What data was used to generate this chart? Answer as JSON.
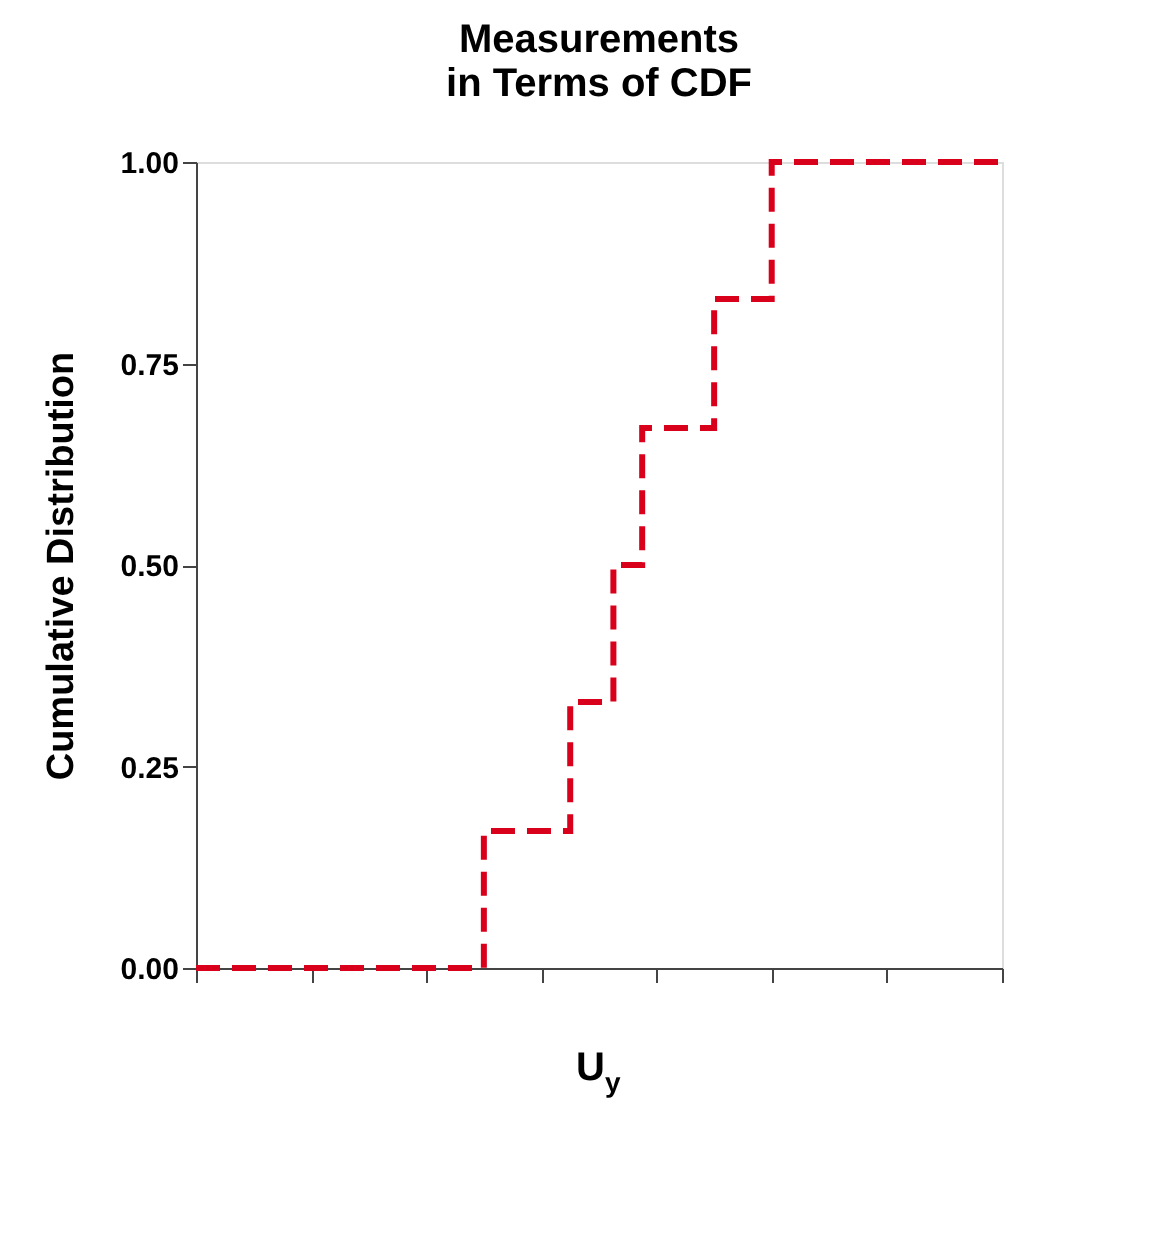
{
  "chart_data": {
    "type": "step",
    "title": "Measurements\nin Terms of CDF",
    "xlabel": "U$_{y}$",
    "ylabel": "Cumulative Distribution",
    "categories": [
      null,
      null,
      null,
      null,
      null,
      null,
      null,
      null,
      null,
      null,
      null,
      null,
      null,
      null,
      null,
      null,
      null,
      null,
      null,
      null,
      null,
      null,
      null,
      null,
      null,
      null,
      null,
      null,
      null,
      null,
      null,
      null,
      null,
      null,
      null,
      null,
      null,
      null,
      null,
      null,
      null,
      null,
      null,
      null,
      null,
      null,
      null,
      null,
      null,
      null,
      null,
      null,
      null,
      null,
      null,
      null,
      null
    ],
    "series": [
      {
        "color": "#d9001b",
        "values": [
          0,
          0,
          0,
          0,
          0,
          0,
          0,
          0,
          0,
          0,
          0,
          0,
          0,
          0,
          0,
          0,
          0,
          0,
          0,
          0,
          0.17,
          0.17,
          0.17,
          0.17,
          0.17,
          0.17,
          0.33,
          0.33,
          0.33,
          0.5,
          0.5,
          0.67,
          0.67,
          0.67,
          0.67,
          0.67,
          0.83,
          0.83,
          0.83,
          0.83,
          1,
          1,
          1,
          1,
          1,
          1,
          1,
          1,
          1,
          1,
          1,
          1,
          1,
          1,
          1,
          1,
          1
        ]
      }
    ],
    "ylim": [
      0,
      1
    ],
    "yticks": [
      {
        "value": 0,
        "label": "0.00"
      },
      {
        "value": 0.25,
        "label": "0.25"
      },
      {
        "value": 0.5,
        "label": "0.50"
      },
      {
        "value": 0.75,
        "label": "0.75"
      },
      {
        "value": 1,
        "label": "1.00"
      }
    ],
    "tick_labels": "y",
    "grid": false,
    "line_style": "dashed",
    "marker": "none"
  }
}
